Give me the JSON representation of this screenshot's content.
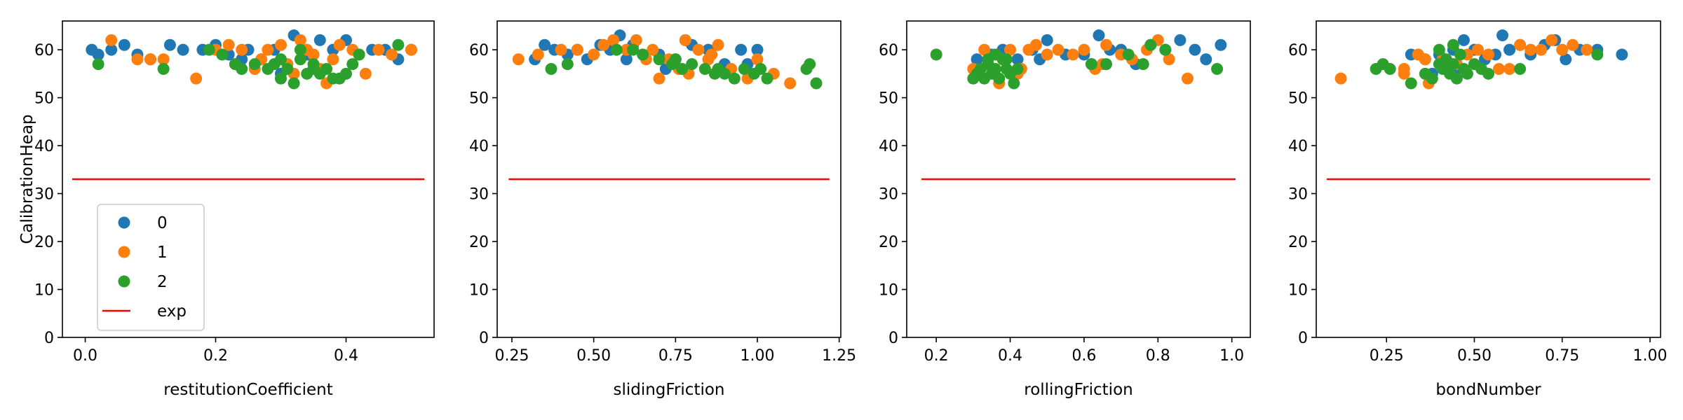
{
  "chart_data": [
    {
      "type": "scatter",
      "xlabel": "restitutionCoefficient",
      "ylabel": "CalibrationHeap",
      "xlim": [
        -0.035,
        0.535
      ],
      "ylim": [
        0,
        66
      ],
      "xticks": [
        "0.0",
        "0.2",
        "0.4"
      ],
      "yticks": [
        "0",
        "10",
        "20",
        "30",
        "40",
        "50",
        "60"
      ],
      "exp": {
        "x": [
          -0.02,
          0.52
        ],
        "y": 33
      },
      "series": [
        {
          "name": "0",
          "color": "#1f77b4",
          "x": [
            0.01,
            0.02,
            0.04,
            0.06,
            0.08,
            0.1,
            0.13,
            0.15,
            0.18,
            0.2,
            0.22,
            0.25,
            0.27,
            0.29,
            0.32,
            0.34,
            0.36,
            0.38,
            0.4,
            0.42,
            0.44,
            0.46,
            0.48,
            0.5,
            0.3,
            0.24
          ],
          "y": [
            60,
            59,
            60,
            61,
            59,
            58,
            61,
            60,
            60,
            61,
            59,
            60,
            58,
            60,
            63,
            59,
            62,
            60,
            62,
            59,
            60,
            60,
            58,
            60,
            55,
            58
          ]
        },
        {
          "name": "1",
          "color": "#ff7f0e",
          "x": [
            0.04,
            0.08,
            0.1,
            0.12,
            0.17,
            0.2,
            0.22,
            0.24,
            0.26,
            0.28,
            0.3,
            0.31,
            0.32,
            0.33,
            0.34,
            0.35,
            0.36,
            0.37,
            0.38,
            0.39,
            0.41,
            0.42,
            0.43,
            0.45,
            0.47,
            0.5,
            0.23,
            0.27
          ],
          "y": [
            62,
            58,
            58,
            58,
            54,
            60,
            61,
            60,
            56,
            60,
            61,
            57,
            55,
            62,
            60,
            59,
            56,
            53,
            58,
            61,
            60,
            59,
            55,
            60,
            59,
            60,
            57,
            58
          ]
        },
        {
          "name": "2",
          "color": "#2ca02c",
          "x": [
            0.02,
            0.12,
            0.19,
            0.21,
            0.23,
            0.24,
            0.26,
            0.28,
            0.29,
            0.3,
            0.31,
            0.32,
            0.33,
            0.34,
            0.35,
            0.36,
            0.37,
            0.38,
            0.39,
            0.4,
            0.41,
            0.42,
            0.35,
            0.33,
            0.3,
            0.48
          ],
          "y": [
            57,
            56,
            60,
            59,
            57,
            56,
            57,
            56,
            57,
            54,
            56,
            53,
            58,
            55,
            57,
            55,
            56,
            54,
            54,
            55,
            57,
            59,
            56,
            60,
            58,
            61
          ]
        }
      ]
    },
    {
      "type": "scatter",
      "xlabel": "slidingFriction",
      "ylabel": "",
      "xlim": [
        0.205,
        1.255
      ],
      "ylim": [
        0,
        66
      ],
      "xticks": [
        "0.25",
        "0.50",
        "0.75",
        "1.00",
        "1.25"
      ],
      "yticks": [
        "0",
        "10",
        "20",
        "30",
        "40",
        "50",
        "60"
      ],
      "exp": {
        "x": [
          0.24,
          1.22
        ],
        "y": 33
      },
      "series": [
        {
          "name": "0",
          "color": "#1f77b4",
          "x": [
            0.32,
            0.35,
            0.38,
            0.42,
            0.48,
            0.52,
            0.55,
            0.58,
            0.62,
            0.65,
            0.7,
            0.75,
            0.78,
            0.8,
            0.85,
            0.9,
            0.95,
            1.0,
            0.72,
            0.6,
            0.45,
            0.97
          ],
          "y": [
            58,
            61,
            60,
            59,
            58,
            61,
            60,
            63,
            61,
            59,
            59,
            58,
            62,
            61,
            60,
            57,
            60,
            60,
            56,
            58,
            60,
            57
          ]
        },
        {
          "name": "1",
          "color": "#ff7f0e",
          "x": [
            0.27,
            0.33,
            0.4,
            0.45,
            0.5,
            0.53,
            0.56,
            0.6,
            0.63,
            0.66,
            0.7,
            0.73,
            0.76,
            0.79,
            0.82,
            0.85,
            0.88,
            0.92,
            0.97,
            1.0,
            1.05,
            1.1,
            0.68,
            0.78,
            0.86
          ],
          "y": [
            58,
            59,
            60,
            60,
            59,
            61,
            62,
            60,
            62,
            58,
            54,
            58,
            56,
            55,
            60,
            58,
            61,
            56,
            54,
            58,
            55,
            53,
            60,
            62,
            59
          ]
        },
        {
          "name": "2",
          "color": "#2ca02c",
          "x": [
            0.37,
            0.42,
            0.57,
            0.62,
            0.65,
            0.7,
            0.74,
            0.77,
            0.8,
            0.84,
            0.87,
            0.9,
            0.93,
            0.96,
            0.99,
            1.01,
            1.03,
            1.15,
            1.16,
            1.18,
            0.75,
            0.88
          ],
          "y": [
            56,
            57,
            60,
            60,
            59,
            58,
            57,
            56,
            57,
            56,
            55,
            55,
            54,
            56,
            55,
            56,
            54,
            56,
            57,
            53,
            58,
            56
          ]
        }
      ]
    },
    {
      "type": "scatter",
      "xlabel": "rollingFriction",
      "ylabel": "",
      "xlim": [
        0.12,
        1.05
      ],
      "ylim": [
        0,
        66
      ],
      "xticks": [
        "0.2",
        "0.4",
        "0.6",
        "0.8",
        "1.0"
      ],
      "yticks": [
        "0",
        "10",
        "20",
        "30",
        "40",
        "50",
        "60"
      ],
      "exp": {
        "x": [
          0.16,
          1.01
        ],
        "y": 33
      },
      "series": [
        {
          "name": "0",
          "color": "#1f77b4",
          "x": [
            0.31,
            0.35,
            0.38,
            0.42,
            0.46,
            0.5,
            0.55,
            0.6,
            0.64,
            0.67,
            0.7,
            0.74,
            0.78,
            0.82,
            0.86,
            0.9,
            0.93,
            0.97,
            0.62,
            0.48
          ],
          "y": [
            58,
            59,
            60,
            58,
            60,
            62,
            59,
            59,
            63,
            60,
            60,
            57,
            61,
            60,
            62,
            60,
            58,
            61,
            57,
            58
          ]
        },
        {
          "name": "1",
          "color": "#ff7f0e",
          "x": [
            0.3,
            0.33,
            0.36,
            0.38,
            0.4,
            0.43,
            0.45,
            0.47,
            0.5,
            0.53,
            0.57,
            0.6,
            0.63,
            0.66,
            0.7,
            0.73,
            0.77,
            0.8,
            0.83,
            0.88,
            0.37,
            0.42,
            0.65
          ],
          "y": [
            56,
            60,
            59,
            58,
            60,
            56,
            60,
            61,
            59,
            60,
            59,
            60,
            56,
            61,
            59,
            58,
            60,
            62,
            58,
            54,
            53,
            55,
            57
          ]
        },
        {
          "name": "2",
          "color": "#2ca02c",
          "x": [
            0.2,
            0.3,
            0.31,
            0.32,
            0.33,
            0.34,
            0.35,
            0.36,
            0.37,
            0.38,
            0.39,
            0.4,
            0.41,
            0.42,
            0.36,
            0.34,
            0.62,
            0.66,
            0.72,
            0.76,
            0.78,
            0.82,
            0.96,
            0.39
          ],
          "y": [
            59,
            54,
            55,
            56,
            54,
            57,
            55,
            56,
            54,
            58,
            56,
            55,
            53,
            56,
            59,
            58,
            57,
            57,
            59,
            57,
            61,
            60,
            56,
            58
          ]
        }
      ]
    },
    {
      "type": "scatter",
      "xlabel": "bondNumber",
      "ylabel": "",
      "xlim": [
        0.05,
        1.03
      ],
      "ylim": [
        0,
        66
      ],
      "xticks": [
        "0.25",
        "0.50",
        "0.75",
        "1.00"
      ],
      "yticks": [
        "0",
        "10",
        "20",
        "30",
        "40",
        "50",
        "60"
      ],
      "exp": {
        "x": [
          0.08,
          1.0
        ],
        "y": 33
      },
      "series": [
        {
          "name": "0",
          "color": "#1f77b4",
          "x": [
            0.32,
            0.36,
            0.4,
            0.44,
            0.47,
            0.5,
            0.53,
            0.56,
            0.58,
            0.6,
            0.63,
            0.66,
            0.7,
            0.73,
            0.76,
            0.8,
            0.85,
            0.92,
            0.45,
            0.38
          ],
          "y": [
            59,
            58,
            59,
            60,
            62,
            60,
            58,
            59,
            63,
            60,
            61,
            59,
            61,
            62,
            58,
            60,
            60,
            59,
            56,
            55
          ]
        },
        {
          "name": "1",
          "color": "#ff7f0e",
          "x": [
            0.12,
            0.3,
            0.34,
            0.37,
            0.41,
            0.45,
            0.48,
            0.51,
            0.54,
            0.57,
            0.6,
            0.63,
            0.66,
            0.69,
            0.72,
            0.75,
            0.78,
            0.82,
            0.36,
            0.3
          ],
          "y": [
            54,
            55,
            59,
            53,
            58,
            57,
            59,
            60,
            59,
            56,
            56,
            61,
            60,
            60,
            62,
            60,
            61,
            60,
            58,
            56
          ]
        },
        {
          "name": "2",
          "color": "#2ca02c",
          "x": [
            0.22,
            0.24,
            0.26,
            0.32,
            0.36,
            0.38,
            0.4,
            0.41,
            0.42,
            0.43,
            0.44,
            0.45,
            0.46,
            0.47,
            0.48,
            0.5,
            0.52,
            0.54,
            0.63,
            0.85,
            0.4,
            0.44
          ],
          "y": [
            56,
            57,
            56,
            53,
            55,
            54,
            60,
            56,
            58,
            55,
            57,
            54,
            59,
            56,
            55,
            57,
            56,
            55,
            56,
            59,
            57,
            61
          ]
        }
      ]
    }
  ],
  "legend": {
    "location": "lower-left of first panel",
    "entries": [
      {
        "label": "0",
        "marker": "dot",
        "color": "#1f77b4"
      },
      {
        "label": "1",
        "marker": "dot",
        "color": "#ff7f0e"
      },
      {
        "label": "2",
        "marker": "dot",
        "color": "#2ca02c"
      },
      {
        "label": "exp",
        "marker": "line",
        "color": "#ff0000"
      }
    ]
  },
  "exp_color": "#ff0000"
}
